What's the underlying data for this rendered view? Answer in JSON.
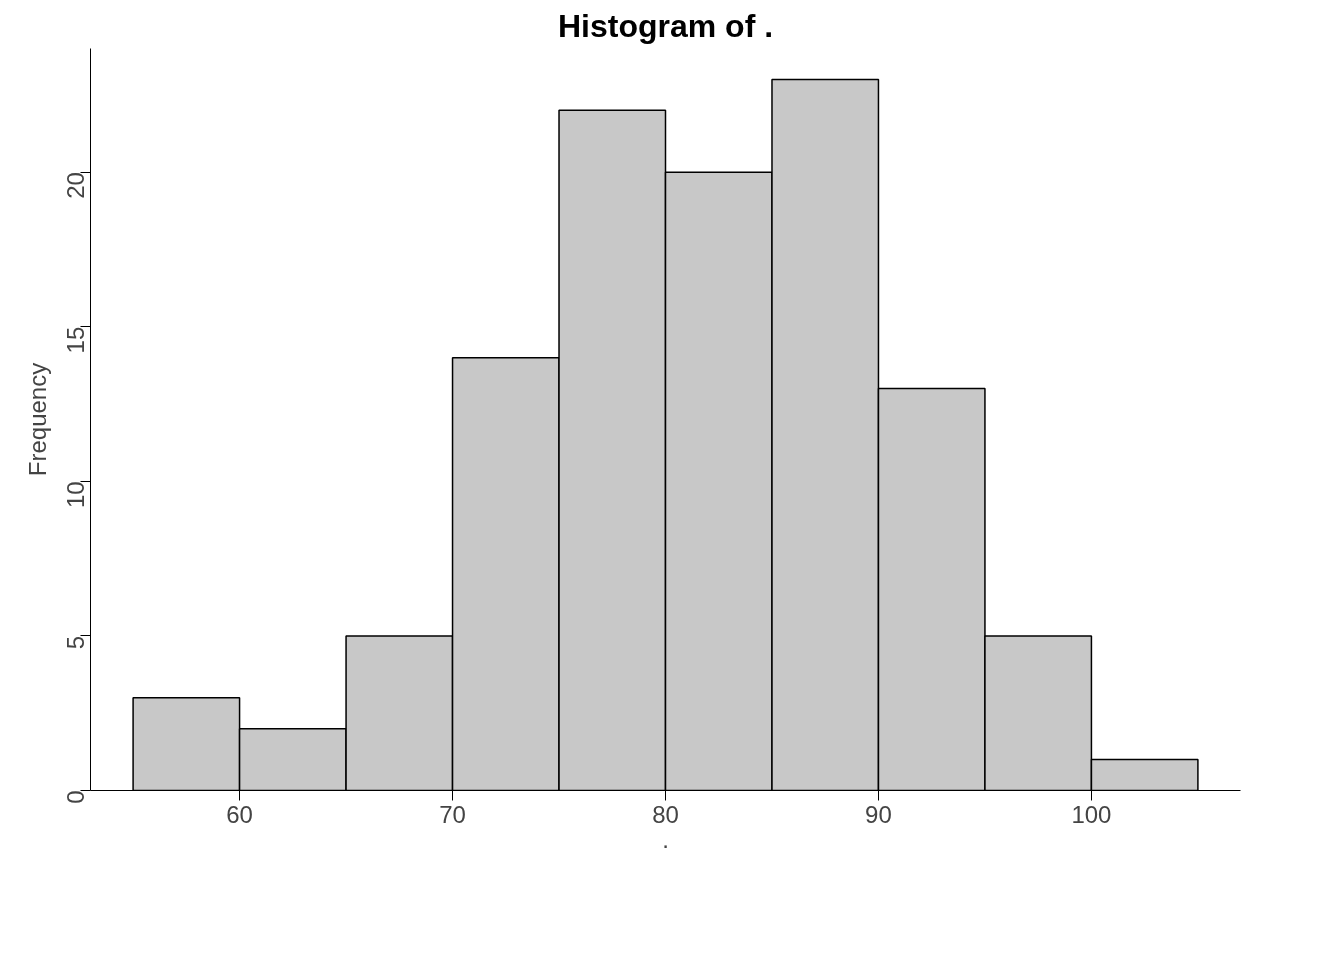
{
  "chart_data": {
    "type": "histogram",
    "title": "Histogram of .",
    "xlabel": ".",
    "ylabel": "Frequency",
    "bins": [
      55,
      60,
      65,
      70,
      75,
      80,
      85,
      90,
      95,
      100,
      105
    ],
    "values": [
      3,
      2,
      5,
      14,
      22,
      20,
      23,
      13,
      5,
      1
    ],
    "color": "#c8c8c8",
    "xlim": [
      53,
      107
    ],
    "ylim": [
      0,
      24
    ],
    "xticks": [
      60,
      70,
      80,
      90,
      100
    ],
    "yticks": [
      0,
      5,
      10,
      15,
      20
    ],
    "grid": false
  }
}
